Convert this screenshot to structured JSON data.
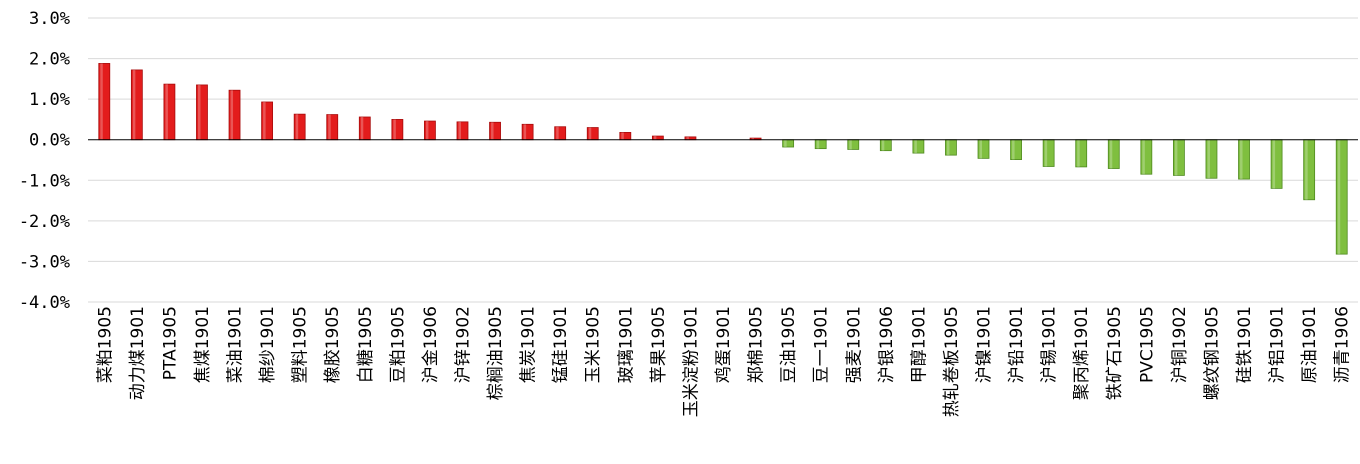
{
  "chart_data": {
    "type": "bar",
    "title": "",
    "xlabel": "",
    "ylabel": "",
    "ylim": [
      -4,
      3
    ],
    "y_ticks": [
      "3.0%",
      "2.0%",
      "1.0%",
      "0.0%",
      "-1.0%",
      "-2.0%",
      "-3.0%",
      "-4.0%"
    ],
    "grid": true,
    "categories": [
      "菜粕1905",
      "动力煤1901",
      "PTA1905",
      "焦煤1901",
      "菜油1901",
      "棉纱1901",
      "塑料1905",
      "橡胶1905",
      "白糖1905",
      "豆粕1905",
      "沪金1906",
      "沪锌1902",
      "棕榈油1905",
      "焦炭1901",
      "锰硅1901",
      "玉米1905",
      "玻璃1901",
      "苹果1905",
      "玉米淀粉1901",
      "鸡蛋1901",
      "郑棉1905",
      "豆油1905",
      "豆一1901",
      "强麦1901",
      "沪银1906",
      "甲醇1901",
      "热轧卷板1905",
      "沪镍1901",
      "沪铅1901",
      "沪锡1901",
      "聚丙烯1901",
      "铁矿石1905",
      "PVC1905",
      "沪铜1902",
      "螺纹钢1905",
      "硅铁1901",
      "沪铝1901",
      "原油1901",
      "沥青1906"
    ],
    "values": [
      1.88,
      1.72,
      1.37,
      1.35,
      1.22,
      0.93,
      0.63,
      0.62,
      0.56,
      0.5,
      0.46,
      0.44,
      0.43,
      0.38,
      0.32,
      0.3,
      0.18,
      0.09,
      0.07,
      0.0,
      0.04,
      -0.18,
      -0.22,
      -0.24,
      -0.27,
      -0.33,
      -0.38,
      -0.46,
      -0.49,
      -0.66,
      -0.67,
      -0.71,
      -0.85,
      -0.88,
      -0.95,
      -0.97,
      -1.2,
      -1.48,
      -2.82
    ],
    "colors": {
      "positive": "#e31c1c",
      "positive_dark": "#a80b0b",
      "negative": "#7fbf3f",
      "negative_dark": "#4f8a1f",
      "grid": "#d9d9d9",
      "axis": "#000000"
    }
  }
}
